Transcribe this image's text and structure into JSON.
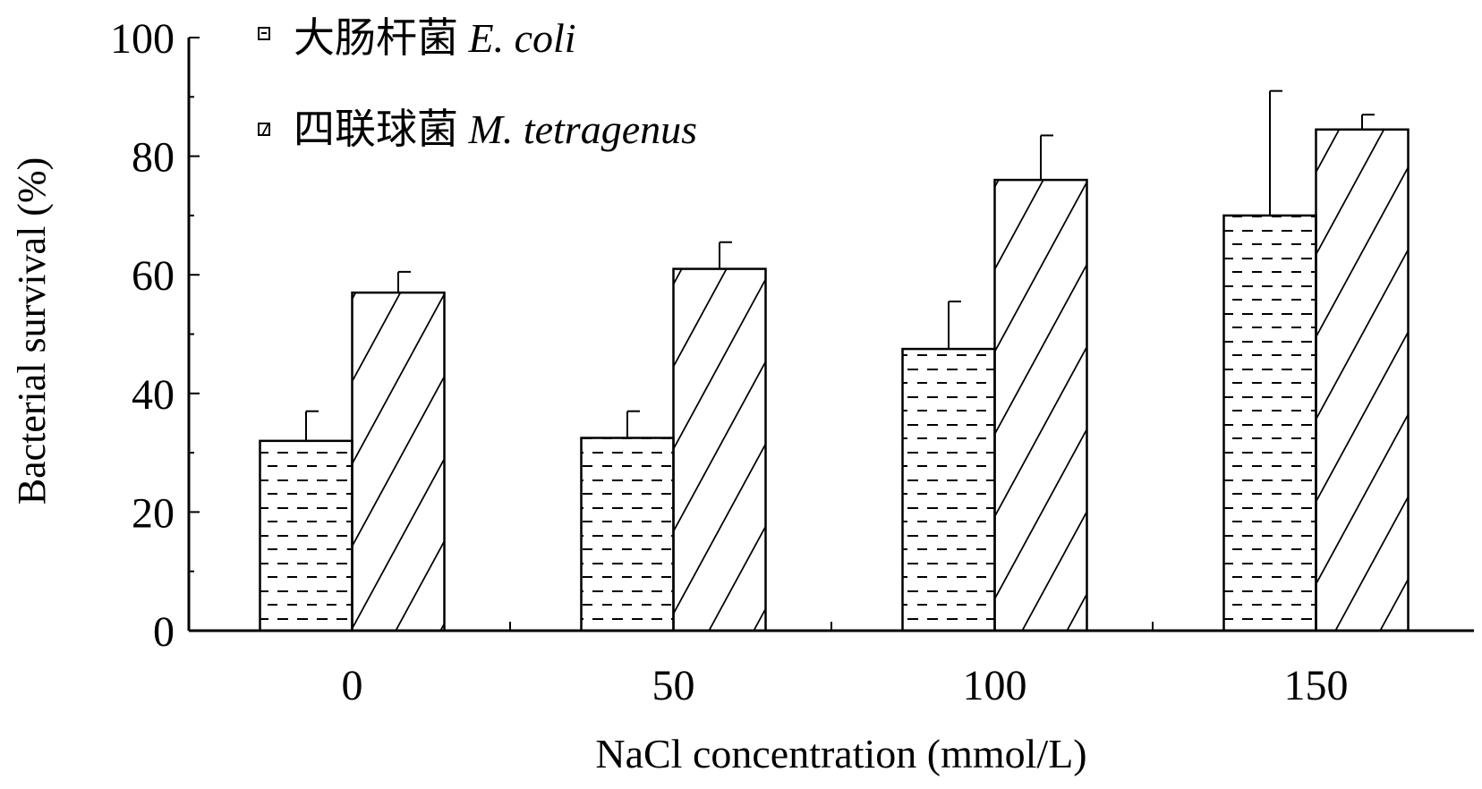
{
  "chart_data": {
    "type": "bar",
    "title": "",
    "xlabel": "NaCl concentration (mmol/L)",
    "ylabel": "Bacterial survival (%)",
    "ylim": [
      0,
      100
    ],
    "yticks": [
      "0",
      "20",
      "40",
      "60",
      "80",
      "100"
    ],
    "categories": [
      "0",
      "50",
      "100",
      "150"
    ],
    "legend_position": "top-left",
    "series": [
      {
        "name": "大肠杆菌",
        "name_italic": "E. coli",
        "pattern": "dashes",
        "values": [
          32,
          32.5,
          47.5,
          70
        ],
        "error_upper": [
          37,
          37,
          55.5,
          91
        ]
      },
      {
        "name": "四联球菌",
        "name_italic": "M. tetragenus",
        "pattern": "diagonal-hatch",
        "values": [
          57,
          61,
          76,
          84.5
        ],
        "error_upper": [
          60.5,
          65.5,
          83.5,
          87
        ]
      }
    ],
    "grid": false
  }
}
